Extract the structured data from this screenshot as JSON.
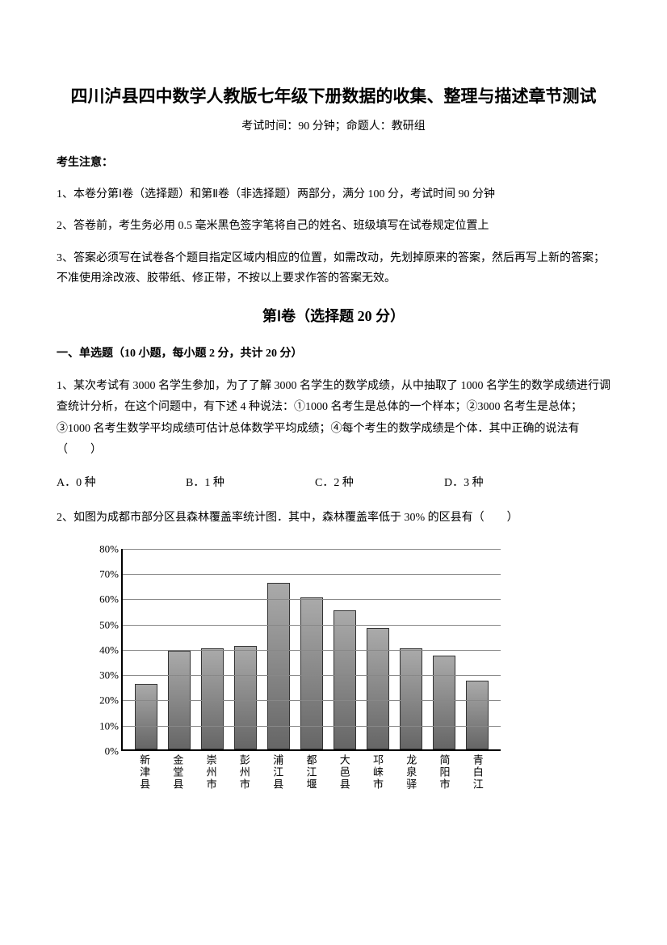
{
  "title": "四川泸县四中数学人教版七年级下册数据的收集、整理与描述章节测试",
  "subtitle": "考试时间：90 分钟；命题人：教研组",
  "notice_heading": "考生注意：",
  "notices": [
    "1、本卷分第Ⅰ卷（选择题）和第Ⅱ卷（非选择题）两部分，满分 100 分，考试时间 90 分钟",
    "2、答卷前，考生务必用 0.5 毫米黑色签字笔将自己的姓名、班级填写在试卷规定位置上",
    "3、答案必须写在试卷各个题目指定区域内相应的位置，如需改动，先划掉原来的答案，然后再写上新的答案；不准使用涂改液、胶带纸、修正带，不按以上要求作答的答案无效。"
  ],
  "section1_heading": "第Ⅰ卷（选择题  20 分）",
  "q_type_heading": "一、单选题（10 小题，每小题 2 分，共计 20 分）",
  "q1": "1、某次考试有 3000 名学生参加，为了了解 3000 名学生的数学成绩，从中抽取了 1000 名学生的数学成绩进行调查统计分析，在这个问题中，有下述 4 种说法：①1000 名考生是总体的一个样本；②3000 名考生是总体；③1000 名考生数学平均成绩可估计总体数学平均成绩；④每个考生的数学成绩是个体．其中正确的说法有（　　）",
  "q1_options": {
    "a": "A．0 种",
    "b": "B．1 种",
    "c": "C．2 种",
    "d": "D．3 种"
  },
  "q2": "2、如图为成都市部分区县森林覆盖率统计图．其中，森林覆盖率低于 30% 的区县有（　　）",
  "chart": {
    "type": "bar",
    "ylim": [
      0,
      80
    ],
    "ytick_step": 10,
    "y_unit": "%",
    "categories": [
      "新津县",
      "金堂县",
      "崇州市",
      "彭州市",
      "浦江县",
      "都江堰",
      "大邑县",
      "邛崃市",
      "龙泉驿",
      "简阳市",
      "青白江"
    ],
    "values": [
      26,
      39,
      40,
      41,
      66,
      60,
      55,
      48,
      40,
      37,
      27
    ],
    "bar_color_gradient": [
      "#aaaaaa",
      "#888888",
      "#666666"
    ],
    "border_color": "#333333",
    "grid_color": "#888888",
    "axis_color": "#000000",
    "background_color": "#ffffff",
    "label_fontsize": 13
  }
}
